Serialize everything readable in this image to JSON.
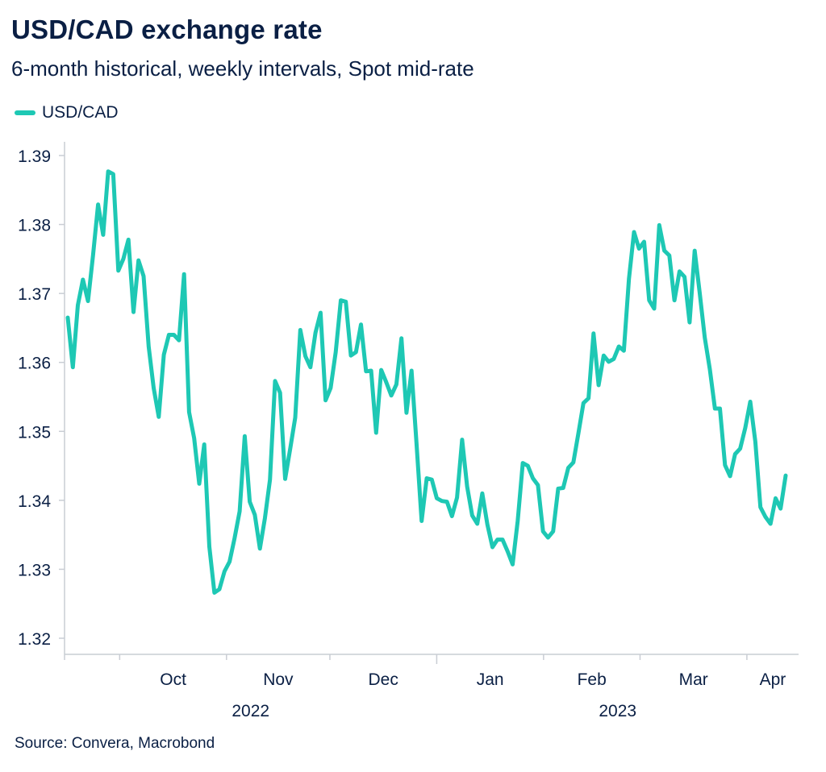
{
  "title": "USD/CAD exchange rate",
  "subtitle": "6-month historical, weekly intervals, Spot mid-rate",
  "source": "Source: Convera, Macrobond",
  "colors": {
    "series": "#1ec8b4",
    "text": "#0a1f44",
    "axis": "#c9cdd4"
  },
  "chart_data": {
    "type": "line",
    "series": [
      {
        "name": "USD/CAD",
        "values": [
          1.3665,
          1.3593,
          1.3683,
          1.372,
          1.3689,
          1.3755,
          1.3829,
          1.3785,
          1.3877,
          1.3873,
          1.3733,
          1.375,
          1.3778,
          1.3673,
          1.3748,
          1.3725,
          1.3623,
          1.3563,
          1.3521,
          1.3611,
          1.364,
          1.364,
          1.3632,
          1.3728,
          1.3528,
          1.349,
          1.3424,
          1.3481,
          1.3333,
          1.3266,
          1.3271,
          1.3297,
          1.3311,
          1.3345,
          1.3384,
          1.3493,
          1.3398,
          1.3379,
          1.333,
          1.3374,
          1.343,
          1.3573,
          1.3556,
          1.3431,
          1.3475,
          1.352,
          1.3647,
          1.3609,
          1.3593,
          1.3643,
          1.3672,
          1.3545,
          1.3563,
          1.3615,
          1.369,
          1.3688,
          1.361,
          1.3615,
          1.3655,
          1.3587,
          1.3588,
          1.3498,
          1.3589,
          1.3571,
          1.3552,
          1.3568,
          1.3635,
          1.3527,
          1.3588,
          1.348,
          1.337,
          1.3432,
          1.343,
          1.3403,
          1.3399,
          1.3398,
          1.3377,
          1.3404,
          1.3488,
          1.342,
          1.3378,
          1.3366,
          1.341,
          1.3365,
          1.3332,
          1.3343,
          1.3343,
          1.3326,
          1.3307,
          1.337,
          1.3454,
          1.345,
          1.3432,
          1.3422,
          1.3355,
          1.3346,
          1.3355,
          1.3417,
          1.3418,
          1.3447,
          1.3455,
          1.3497,
          1.3541,
          1.3548,
          1.3642,
          1.3567,
          1.361,
          1.3601,
          1.3605,
          1.3623,
          1.3617,
          1.3721,
          1.3789,
          1.3765,
          1.3775,
          1.369,
          1.3678,
          1.3799,
          1.3762,
          1.3755,
          1.369,
          1.3732,
          1.3724,
          1.3658,
          1.3762,
          1.37,
          1.3636,
          1.359,
          1.3533,
          1.3533,
          1.3451,
          1.3435,
          1.3467,
          1.3475,
          1.3505,
          1.3543,
          1.3485,
          1.339,
          1.3376,
          1.3366,
          1.3403,
          1.3388,
          1.3436
        ]
      }
    ],
    "x_start": "2022-09-15",
    "x_end": "2023-04-16",
    "y_ticks": [
      "1.39",
      "1.38",
      "1.37",
      "1.36",
      "1.35",
      "1.34",
      "1.33",
      "1.32"
    ],
    "ylim": [
      1.32,
      1.39
    ],
    "x_ticks": [
      {
        "label": "Oct",
        "start": "2022-10-01",
        "end": "2022-11-01"
      },
      {
        "label": "Nov",
        "start": "2022-11-01",
        "end": "2022-12-01"
      },
      {
        "label": "Dec",
        "start": "2022-12-01",
        "end": "2023-01-01"
      },
      {
        "label": "Jan",
        "start": "2023-01-01",
        "end": "2023-02-01"
      },
      {
        "label": "Feb",
        "start": "2023-02-01",
        "end": "2023-03-01"
      },
      {
        "label": "Mar",
        "start": "2023-03-01",
        "end": "2023-04-01"
      },
      {
        "label": "Apr",
        "start": "2023-04-01",
        "end": "2023-04-16"
      }
    ],
    "year_labels": [
      {
        "label": "2022",
        "start": "2022-09-15",
        "end": "2023-01-01"
      },
      {
        "label": "2023",
        "start": "2023-01-01",
        "end": "2023-04-16"
      }
    ],
    "grid": false,
    "legend": "top-left"
  }
}
